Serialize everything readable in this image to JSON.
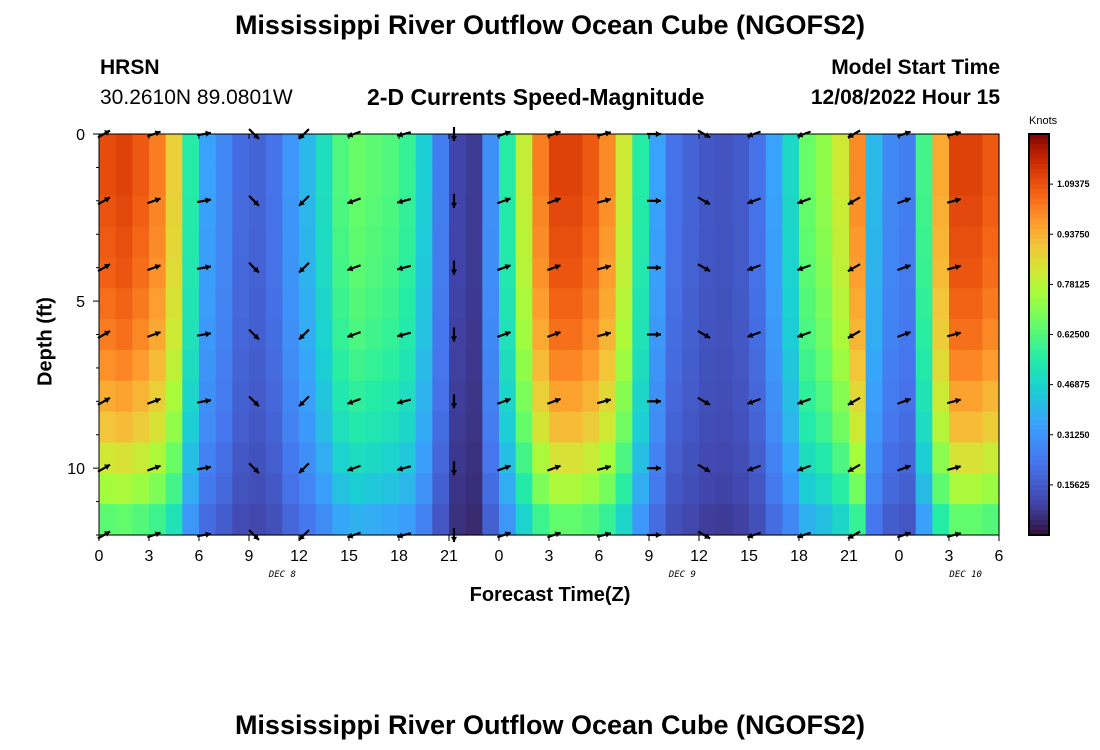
{
  "page": {
    "title_top": "Mississippi River Outflow Ocean Cube (NGOFS2)",
    "title_bottom": "Mississippi River Outflow Ocean Cube (NGOFS2)",
    "station_name": "HRSN",
    "station_coords": "30.2610N  89.0801W",
    "plot_title": "2-D Currents Speed-Magnitude",
    "model_start_label": "Model Start Time",
    "model_start_value": "12/08/2022 Hour 15"
  },
  "chart_data": {
    "type": "heatmap",
    "xlabel": "Forecast Time(Z)",
    "ylabel": "Depth (ft)",
    "x_ticks": [
      "0",
      "3",
      "6",
      "9",
      "12",
      "15",
      "18",
      "21",
      "0",
      "3",
      "6",
      "9",
      "12",
      "15",
      "18",
      "21",
      "0",
      "3",
      "6"
    ],
    "date_labels": [
      {
        "label": "DEC 8",
        "at_hour": 11
      },
      {
        "label": "DEC 9",
        "at_hour": 35
      },
      {
        "label": "DEC 10",
        "at_hour": 52
      }
    ],
    "x_range_hours": [
      0,
      54
    ],
    "y_ticks": [
      "0",
      "5",
      "10"
    ],
    "y_range_ft": [
      0,
      12
    ],
    "colorbar": {
      "unit": "Knots",
      "range": [
        0,
        1.25
      ],
      "tick_labels": [
        "1.09375",
        "0.93750",
        "0.78125",
        "0.62500",
        "0.46875",
        "0.31250",
        "0.15625"
      ],
      "tick_values": [
        1.09375,
        0.9375,
        0.78125,
        0.625,
        0.46875,
        0.3125,
        0.15625
      ]
    },
    "surface_speed_by_hour": [
      1.1,
      1.12,
      1.08,
      1.02,
      0.88,
      0.55,
      0.35,
      0.28,
      0.2,
      0.18,
      0.22,
      0.32,
      0.4,
      0.5,
      0.62,
      0.66,
      0.64,
      0.62,
      0.58,
      0.45,
      0.25,
      0.1,
      0.08,
      0.3,
      0.55,
      0.8,
      1.02,
      1.12,
      1.12,
      1.08,
      1.0,
      0.82,
      0.55,
      0.35,
      0.22,
      0.18,
      0.15,
      0.14,
      0.16,
      0.22,
      0.35,
      0.48,
      0.66,
      0.72,
      0.82,
      1.0,
      0.4,
      0.28,
      0.25,
      0.6,
      0.95,
      1.12,
      1.12,
      1.08,
      0.95
    ],
    "depth_factor": [
      1.0,
      1.0,
      0.99,
      0.98,
      0.97,
      0.95,
      0.93,
      0.9,
      0.86,
      0.82,
      0.75,
      0.68,
      0.58
    ],
    "arrow_hours": [
      0,
      3,
      6,
      9,
      12,
      15,
      18,
      21,
      24,
      27,
      30,
      33,
      36,
      39,
      42,
      45,
      48,
      51
    ],
    "arrow_depths_ft": [
      0,
      2,
      4,
      6,
      8,
      10,
      12
    ],
    "arrow_direction_deg_by_hour": [
      30,
      20,
      10,
      -45,
      -135,
      200,
      195,
      270,
      20,
      20,
      15,
      0,
      -30,
      200,
      200,
      210,
      20,
      15
    ]
  }
}
